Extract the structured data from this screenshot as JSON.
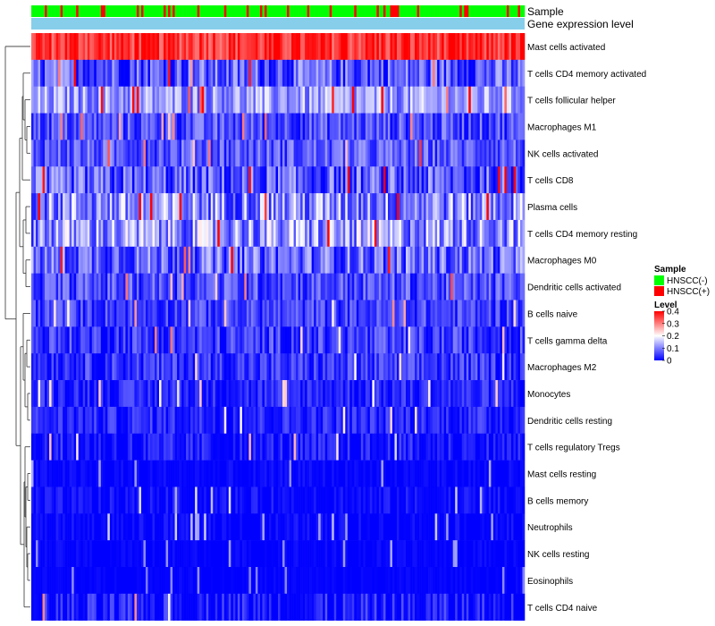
{
  "chart_data": {
    "type": "heatmap",
    "title": "",
    "annotation_tracks": [
      "Sample",
      "Gene expression level"
    ],
    "rows": [
      {
        "label": "Mast cells activated",
        "mean": 0.36,
        "spread": 0.06
      },
      {
        "label": "T cells CD4 memory activated",
        "mean": 0.07,
        "spread": 0.08
      },
      {
        "label": "T cells follicular helper",
        "mean": 0.12,
        "spread": 0.07
      },
      {
        "label": "Macrophages M1",
        "mean": 0.06,
        "spread": 0.06
      },
      {
        "label": "NK cells activated",
        "mean": 0.07,
        "spread": 0.06
      },
      {
        "label": "T cells CD8",
        "mean": 0.06,
        "spread": 0.09
      },
      {
        "label": "Plasma cells",
        "mean": 0.11,
        "spread": 0.1
      },
      {
        "label": "T cells CD4 memory resting",
        "mean": 0.12,
        "spread": 0.1
      },
      {
        "label": "Macrophages M0",
        "mean": 0.08,
        "spread": 0.08
      },
      {
        "label": "Dendritic cells activated",
        "mean": 0.06,
        "spread": 0.06
      },
      {
        "label": "B cells naive",
        "mean": 0.05,
        "spread": 0.05
      },
      {
        "label": "T cells gamma delta",
        "mean": 0.04,
        "spread": 0.06
      },
      {
        "label": "Macrophages M2",
        "mean": 0.04,
        "spread": 0.05
      },
      {
        "label": "Monocytes",
        "mean": 0.03,
        "spread": 0.04
      },
      {
        "label": "Dendritic cells resting",
        "mean": 0.03,
        "spread": 0.04
      },
      {
        "label": "T cells regulatory  Tregs",
        "mean": 0.01,
        "spread": 0.05
      },
      {
        "label": "Mast cells resting",
        "mean": 0.0,
        "spread": 0.02
      },
      {
        "label": "B cells memory",
        "mean": 0.005,
        "spread": 0.03
      },
      {
        "label": "Neutrophils",
        "mean": 0.0,
        "spread": 0.025
      },
      {
        "label": "NK cells resting",
        "mean": 0.0,
        "spread": 0.015
      },
      {
        "label": "Eosinophils",
        "mean": 0.0,
        "spread": 0.01
      },
      {
        "label": "T cells CD4 naive",
        "mean": 0.01,
        "spread": 0.06
      }
    ],
    "columns": {
      "count": 220,
      "fraction_hnscc_pos": 0.2
    },
    "color_scale": {
      "low": "#0000FF",
      "mid": "#FFFFFF",
      "high": "#FF0000",
      "range": [
        0,
        0.4
      ],
      "midpoint": 0.2
    },
    "legend": {
      "sample_title": "Sample",
      "sample_entries": [
        {
          "label": "HNSCC(-)",
          "color": "#00FF00"
        },
        {
          "label": "HNSCC(+)",
          "color": "#FF0000"
        }
      ],
      "level_title": "Level",
      "level_ticks": [
        "0.4",
        "0.3",
        "0.2",
        "0.1",
        "0"
      ],
      "level_tick_values": [
        0.4,
        0.3,
        0.2,
        0.1,
        0
      ],
      "placement": "right"
    },
    "gene_level_color": "#87CEEB",
    "grid": false,
    "dendrogram": "rows"
  }
}
